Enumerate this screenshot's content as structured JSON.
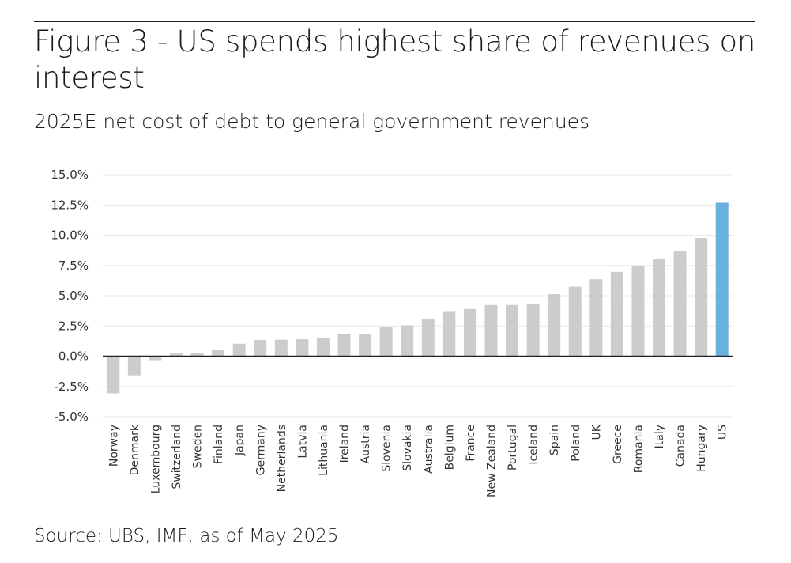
{
  "title": "Figure 3 - US spends highest share of revenues on interest",
  "subtitle": "2025E net cost of debt to general government revenues",
  "source": "Source: UBS, IMF, as of May 2025",
  "colors": {
    "default_bar": "#cccccc",
    "highlight_bar": "#6ab2de",
    "zero_line": "#222222",
    "grid": "#e8e8e8"
  },
  "chart_data": {
    "type": "bar",
    "title": "2025E net cost of debt to general government revenues",
    "xlabel": "",
    "ylabel": "",
    "ylim": [
      -5,
      15
    ],
    "yticks": [
      15,
      12.5,
      10,
      7.5,
      5,
      2.5,
      0,
      -2.5,
      -5
    ],
    "ytick_labels": [
      "15.0%",
      "12.5%",
      "10.0%",
      "7.5%",
      "5.0%",
      "2.5%",
      "0.0%",
      "-2.5%",
      "-5.0%"
    ],
    "grid": true,
    "highlight": "US",
    "categories": [
      "Norway",
      "Denmark",
      "Luxembourg",
      "Switzerland",
      "Sweden",
      "Finland",
      "Japan",
      "Germany",
      "Netherlands",
      "Latvia",
      "Lithuania",
      "Ireland",
      "Austria",
      "Slovenia",
      "Slovakia",
      "Australia",
      "Belgium",
      "France",
      "New Zealand",
      "Portugal",
      "Iceland",
      "Spain",
      "Poland",
      "UK",
      "Greece",
      "Romania",
      "Italy",
      "Canada",
      "Hungary",
      "US"
    ],
    "values": [
      -3.07,
      -1.58,
      -0.33,
      0.22,
      0.24,
      0.55,
      1.03,
      1.34,
      1.36,
      1.4,
      1.54,
      1.82,
      1.86,
      2.43,
      2.55,
      3.11,
      3.73,
      3.9,
      4.23,
      4.23,
      4.3,
      5.13,
      5.75,
      6.36,
      6.97,
      7.46,
      8.05,
      8.71,
      9.76,
      12.68
    ]
  }
}
